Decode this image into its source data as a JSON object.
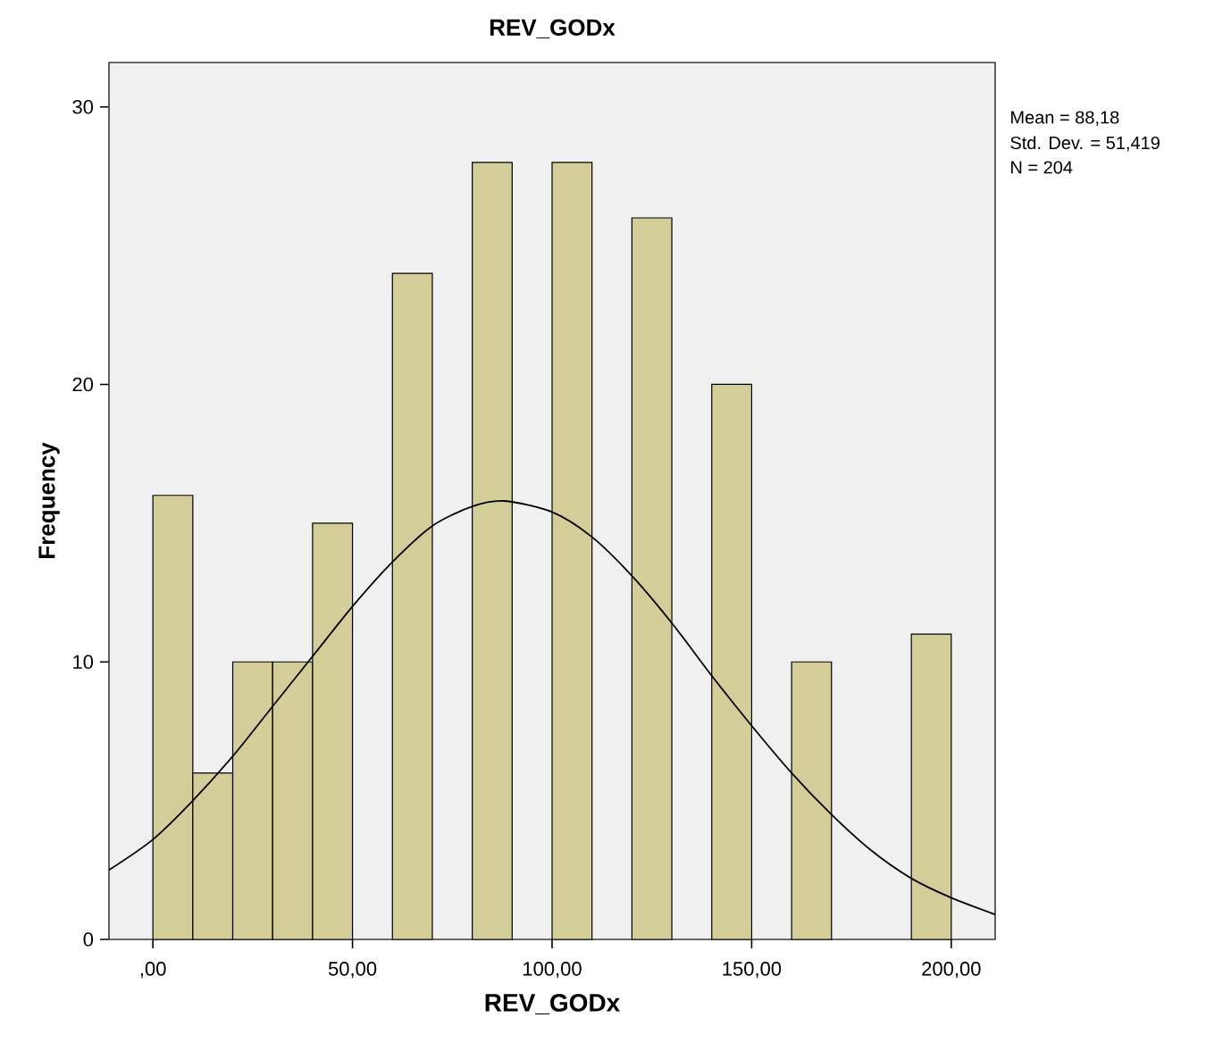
{
  "chart_data": {
    "type": "histogram",
    "title": "REV_GODx",
    "xlabel": "REV_GODx",
    "ylabel": "Frequency",
    "annotations": [
      "Mean = 88,18",
      "Std. Dev. = 51,419",
      "N = 204"
    ],
    "xlim": [
      -11,
      211
    ],
    "ylim": [
      0,
      31.6
    ],
    "xticks": [
      {
        "value": 0,
        "label": ",00"
      },
      {
        "value": 50,
        "label": "50,00"
      },
      {
        "value": 100,
        "label": "100,00"
      },
      {
        "value": 150,
        "label": "150,00"
      },
      {
        "value": 200,
        "label": "200,00"
      }
    ],
    "yticks": [
      0,
      10,
      20,
      30
    ],
    "series": [
      {
        "color": "#d3ce99",
        "bins": [
          0,
          10,
          20,
          30,
          40,
          50,
          60,
          70,
          80,
          90,
          100,
          110,
          120,
          130,
          140,
          150,
          160,
          170,
          180,
          190,
          200
        ],
        "values": [
          16,
          6,
          10,
          10,
          15,
          0,
          24,
          0,
          28,
          0,
          28,
          0,
          26,
          0,
          20,
          0,
          10,
          0,
          0,
          11
        ]
      },
      {
        "type": "line",
        "color": "#000000",
        "x": [
          -11,
          0,
          10,
          20,
          30,
          40,
          50,
          60,
          70,
          80,
          88,
          100,
          110,
          120,
          130,
          140,
          150,
          160,
          170,
          180,
          190,
          200,
          211
        ],
        "values": [
          2.5,
          3.6,
          5.0,
          6.6,
          8.4,
          10.2,
          12.0,
          13.6,
          14.9,
          15.6,
          15.8,
          15.4,
          14.5,
          13.1,
          11.4,
          9.5,
          7.7,
          6.0,
          4.5,
          3.2,
          2.2,
          1.5,
          0.9
        ]
      }
    ]
  }
}
